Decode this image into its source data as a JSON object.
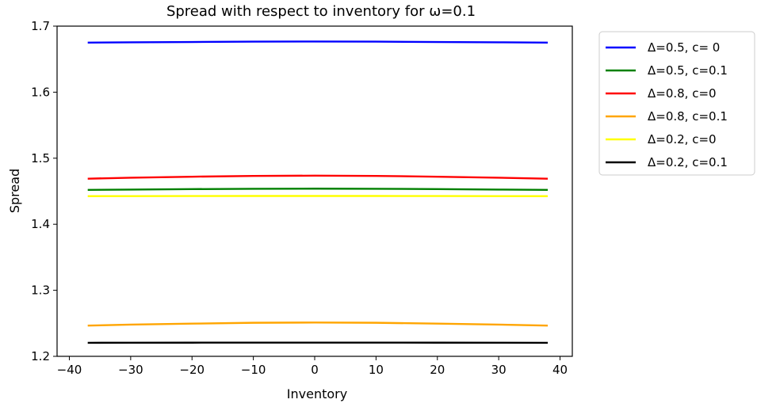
{
  "chart_data": {
    "type": "line",
    "title": "Spread with respect to inventory for ω=0.1",
    "xlabel": "Inventory",
    "ylabel": "Spread",
    "xlim": [
      -42,
      42
    ],
    "ylim": [
      1.2,
      1.7
    ],
    "xticks": [
      -40,
      -30,
      -20,
      -10,
      0,
      10,
      20,
      30,
      40
    ],
    "xtick_labels": [
      "−40",
      "−30",
      "−20",
      "−10",
      "0",
      "10",
      "20",
      "30",
      "40"
    ],
    "yticks": [
      1.2,
      1.3,
      1.4,
      1.5,
      1.6,
      1.7
    ],
    "ytick_labels": [
      "1.2",
      "1.3",
      "1.4",
      "1.5",
      "1.6",
      "1.7"
    ],
    "grid": false,
    "legend_position": "outside-top-right",
    "x": [
      -37,
      -30,
      -20,
      -10,
      0,
      10,
      20,
      30,
      38
    ],
    "series": [
      {
        "name": "Δ=0.5, c= 0",
        "color": "#0000ff",
        "values": [
          1.675,
          1.6755,
          1.676,
          1.6765,
          1.6767,
          1.6765,
          1.676,
          1.6755,
          1.675
        ]
      },
      {
        "name": "Δ=0.5, c=0.1",
        "color": "#008000",
        "values": [
          1.452,
          1.4525,
          1.4532,
          1.4537,
          1.4539,
          1.4537,
          1.4532,
          1.4525,
          1.452
        ]
      },
      {
        "name": "Δ=0.8, c=0",
        "color": "#ff0000",
        "values": [
          1.469,
          1.4705,
          1.472,
          1.4732,
          1.4736,
          1.4732,
          1.472,
          1.4705,
          1.469
        ]
      },
      {
        "name": "Δ=0.8, c=0.1",
        "color": "#ffa500",
        "values": [
          1.2465,
          1.248,
          1.2495,
          1.2508,
          1.2512,
          1.2508,
          1.2495,
          1.248,
          1.2465
        ]
      },
      {
        "name": "Δ=0.2, c=0",
        "color": "#ffff00",
        "values": [
          1.4425,
          1.4426,
          1.4427,
          1.4428,
          1.4428,
          1.4428,
          1.4427,
          1.4426,
          1.4425
        ]
      },
      {
        "name": "Δ=0.2, c=0.1",
        "color": "#000000",
        "values": [
          1.2205,
          1.2206,
          1.2207,
          1.2208,
          1.2208,
          1.2208,
          1.2207,
          1.2206,
          1.2205
        ]
      }
    ]
  }
}
